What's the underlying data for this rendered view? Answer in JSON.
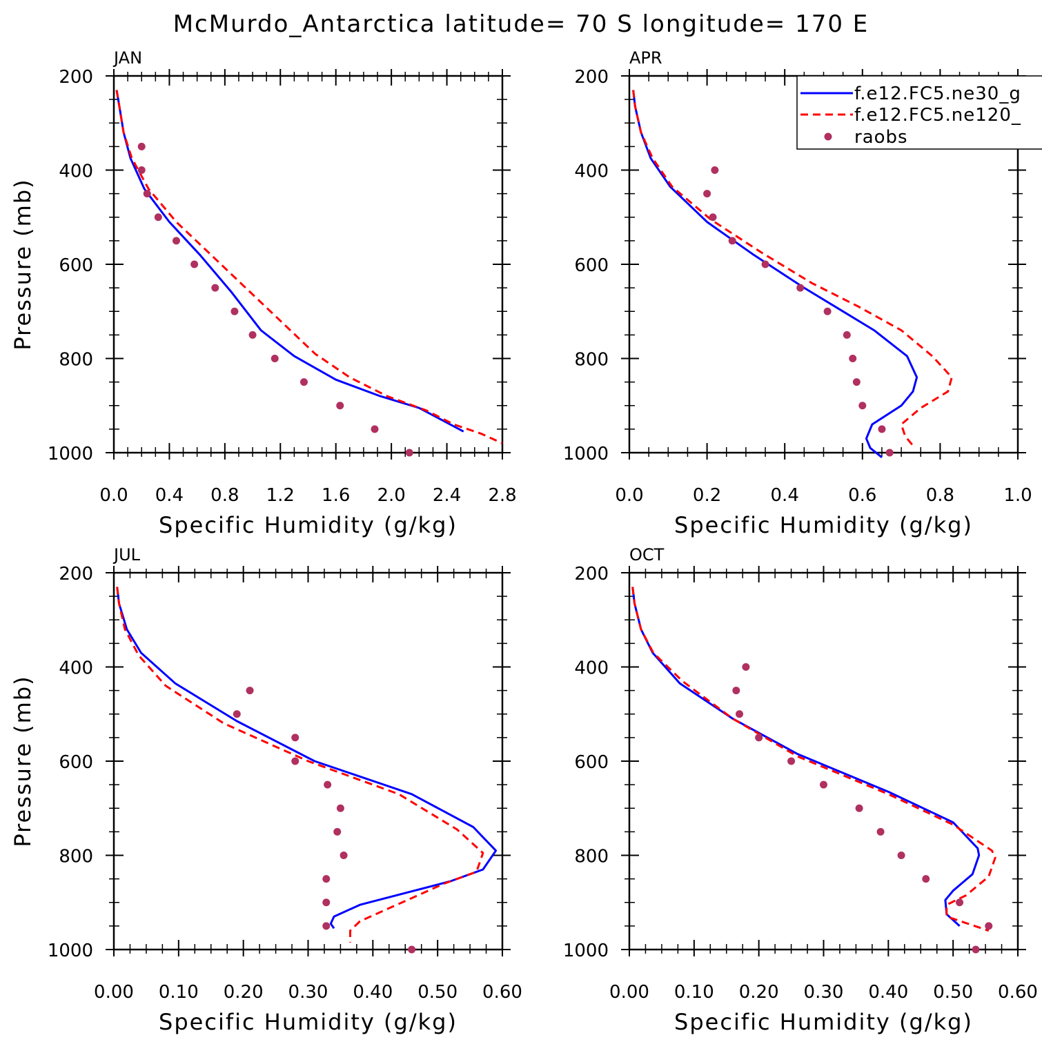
{
  "figure": {
    "title": "McMurdo_Antarctica  latitude= 70 S longitude= 170 E"
  },
  "legend": {
    "entries": [
      {
        "label": "f.e12.FC5.ne30_g",
        "style": "solid",
        "color": "#0000ff"
      },
      {
        "label": "f.e12.FC5.ne120_",
        "style": "dashed",
        "color": "#ff0000"
      },
      {
        "label": "raobs",
        "style": "dot",
        "color": "#b03060"
      }
    ]
  },
  "colors": {
    "model1": "#0000ff",
    "model2": "#ff0000",
    "obs": "#b03060"
  },
  "chart_data": [
    {
      "type": "line",
      "title": "JAN",
      "xlabel": "Specific Humidity (g/kg)",
      "ylabel": "Pressure (mb)",
      "xlim": [
        0,
        2.8
      ],
      "ylim": [
        200,
        1000
      ],
      "xticks": [
        "0.0",
        "0.4",
        "0.8",
        "1.2",
        "1.6",
        "2.0",
        "2.4",
        "2.8"
      ],
      "yticks": [
        "200",
        "400",
        "600",
        "800",
        "1000"
      ],
      "series": [
        {
          "name": "f.e12.FC5.ne30_g",
          "x": [
            0.02,
            0.04,
            0.07,
            0.12,
            0.22,
            0.4,
            0.62,
            0.85,
            1.06,
            1.3,
            1.6,
            1.92,
            2.2,
            2.36,
            2.52
          ],
          "y": [
            230,
            265,
            320,
            375,
            440,
            510,
            580,
            660,
            740,
            795,
            845,
            880,
            905,
            930,
            955
          ]
        },
        {
          "name": "f.e12.FC5.ne120_",
          "x": [
            0.02,
            0.04,
            0.07,
            0.13,
            0.25,
            0.45,
            0.7,
            0.95,
            1.2,
            1.45,
            1.7,
            1.97,
            2.25,
            2.45,
            2.65,
            2.8
          ],
          "y": [
            230,
            265,
            320,
            375,
            440,
            510,
            580,
            650,
            720,
            790,
            840,
            880,
            910,
            940,
            960,
            980
          ]
        },
        {
          "name": "raobs",
          "x": [
            0.2,
            0.2,
            0.24,
            0.32,
            0.45,
            0.58,
            0.73,
            0.87,
            1.0,
            1.16,
            1.37,
            1.63,
            1.88,
            2.13
          ],
          "y": [
            350,
            400,
            450,
            500,
            550,
            600,
            650,
            700,
            750,
            800,
            850,
            900,
            950,
            1000
          ]
        }
      ]
    },
    {
      "type": "line",
      "title": "APR",
      "xlabel": "Specific Humidity (g/kg)",
      "ylabel": "",
      "xlim": [
        0,
        1.0
      ],
      "ylim": [
        200,
        1000
      ],
      "xticks": [
        "0.0",
        "0.2",
        "0.4",
        "0.6",
        "0.8",
        "1.0"
      ],
      "yticks": [
        "200",
        "400",
        "600",
        "800",
        "1000"
      ],
      "series": [
        {
          "name": "f.e12.FC5.ne30_g",
          "x": [
            0.01,
            0.015,
            0.03,
            0.055,
            0.105,
            0.2,
            0.32,
            0.45,
            0.55,
            0.63,
            0.715,
            0.74,
            0.73,
            0.7,
            0.625,
            0.61,
            0.62,
            0.65
          ],
          "y": [
            230,
            265,
            320,
            375,
            435,
            510,
            580,
            650,
            700,
            740,
            795,
            840,
            870,
            900,
            940,
            970,
            990,
            1010
          ]
        },
        {
          "name": "f.e12.FC5.ne120_",
          "x": [
            0.01,
            0.015,
            0.03,
            0.06,
            0.11,
            0.21,
            0.34,
            0.47,
            0.59,
            0.7,
            0.78,
            0.83,
            0.82,
            0.75,
            0.7,
            0.71,
            0.73
          ],
          "y": [
            230,
            265,
            320,
            375,
            435,
            505,
            575,
            640,
            690,
            740,
            795,
            840,
            870,
            905,
            940,
            965,
            985
          ]
        },
        {
          "name": "raobs",
          "x": [
            0.22,
            0.2,
            0.215,
            0.265,
            0.35,
            0.44,
            0.51,
            0.56,
            0.575,
            0.585,
            0.6,
            0.65,
            0.67
          ],
          "y": [
            400,
            450,
            500,
            550,
            600,
            650,
            700,
            750,
            800,
            850,
            900,
            950,
            1000
          ]
        }
      ]
    },
    {
      "type": "line",
      "title": "JUL",
      "xlabel": "Specific Humidity (g/kg)",
      "ylabel": "Pressure (mb)",
      "xlim": [
        0,
        0.6
      ],
      "ylim": [
        200,
        1000
      ],
      "xticks": [
        "0.00",
        "0.10",
        "0.20",
        "0.30",
        "0.40",
        "0.50",
        "0.60"
      ],
      "yticks": [
        "200",
        "400",
        "600",
        "800",
        "1000"
      ],
      "series": [
        {
          "name": "f.e12.FC5.ne30_g",
          "x": [
            0.005,
            0.008,
            0.02,
            0.042,
            0.095,
            0.19,
            0.31,
            0.46,
            0.555,
            0.59,
            0.57,
            0.52,
            0.38,
            0.34,
            0.335,
            0.34
          ],
          "y": [
            230,
            265,
            320,
            370,
            435,
            515,
            600,
            670,
            740,
            790,
            830,
            855,
            905,
            930,
            945,
            955
          ]
        },
        {
          "name": "f.e12.FC5.ne120_",
          "x": [
            0.005,
            0.008,
            0.017,
            0.038,
            0.08,
            0.17,
            0.3,
            0.44,
            0.53,
            0.57,
            0.56,
            0.51,
            0.38,
            0.365,
            0.365
          ],
          "y": [
            230,
            265,
            320,
            375,
            440,
            520,
            600,
            670,
            745,
            795,
            835,
            860,
            940,
            960,
            985
          ]
        },
        {
          "name": "raobs",
          "x": [
            0.21,
            0.19,
            0.28,
            0.28,
            0.33,
            0.35,
            0.345,
            0.355,
            0.328,
            0.328,
            0.328,
            0.46
          ],
          "y": [
            450,
            500,
            550,
            600,
            650,
            700,
            750,
            800,
            850,
            900,
            950,
            1000
          ]
        }
      ]
    },
    {
      "type": "line",
      "title": "OCT",
      "xlabel": "Specific Humidity (g/kg)",
      "ylabel": "",
      "xlim": [
        0,
        0.6
      ],
      "ylim": [
        200,
        1000
      ],
      "xticks": [
        "0.00",
        "0.10",
        "0.20",
        "0.30",
        "0.40",
        "0.50",
        "0.60"
      ],
      "yticks": [
        "200",
        "400",
        "600",
        "800",
        "1000"
      ],
      "series": [
        {
          "name": "f.e12.FC5.ne30_g",
          "x": [
            0.005,
            0.008,
            0.018,
            0.036,
            0.078,
            0.16,
            0.26,
            0.4,
            0.5,
            0.538,
            0.54,
            0.53,
            0.5,
            0.488,
            0.49,
            0.51
          ],
          "y": [
            230,
            265,
            320,
            370,
            435,
            510,
            585,
            665,
            730,
            785,
            800,
            840,
            875,
            895,
            925,
            950
          ]
        },
        {
          "name": "f.e12.FC5.ne120_",
          "x": [
            0.005,
            0.008,
            0.018,
            0.037,
            0.082,
            0.16,
            0.26,
            0.4,
            0.5,
            0.56,
            0.565,
            0.555,
            0.52,
            0.49,
            0.49,
            0.555
          ],
          "y": [
            230,
            265,
            320,
            370,
            430,
            510,
            590,
            670,
            735,
            790,
            805,
            845,
            885,
            905,
            930,
            960
          ]
        },
        {
          "name": "raobs",
          "x": [
            0.18,
            0.165,
            0.17,
            0.2,
            0.25,
            0.3,
            0.355,
            0.388,
            0.42,
            0.458,
            0.51,
            0.555,
            0.535
          ],
          "y": [
            400,
            450,
            500,
            550,
            600,
            650,
            700,
            750,
            800,
            850,
            900,
            950,
            1000
          ]
        }
      ]
    }
  ]
}
